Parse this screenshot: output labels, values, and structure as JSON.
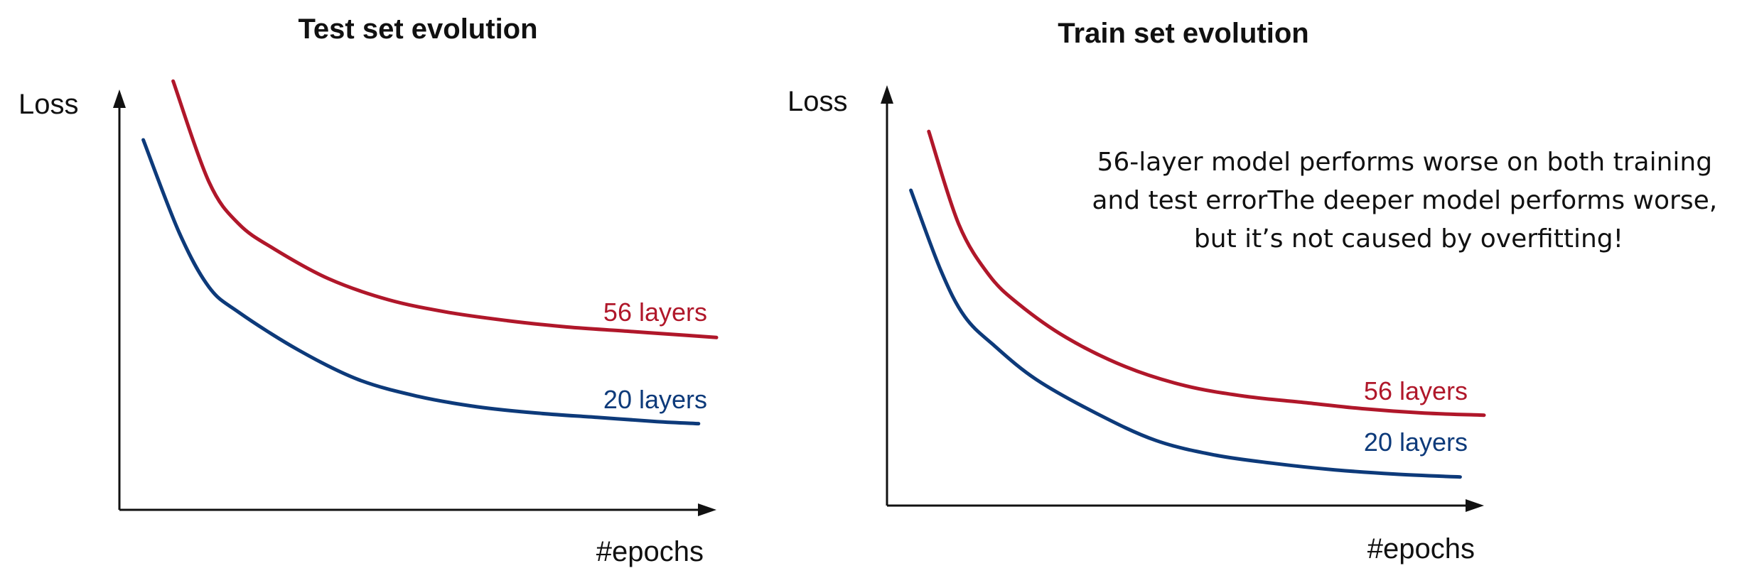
{
  "colors": {
    "red_series": "#b0172a",
    "blue_series": "#0d3a7a",
    "axis": "#111111",
    "background": "#ffffff"
  },
  "chart_data": [
    {
      "type": "line",
      "title": "Test set evolution",
      "xlabel": "#epochs",
      "ylabel": "Loss",
      "grid": false,
      "xlim": [
        0,
        1
      ],
      "ylim": [
        0,
        1
      ],
      "series": [
        {
          "name": "56 layers",
          "color": "#b0172a",
          "x": [
            0.09,
            0.15,
            0.2,
            0.26,
            0.35,
            0.45,
            0.55,
            0.65,
            0.75,
            0.85,
            0.95,
            1.0
          ],
          "y": [
            1.02,
            0.78,
            0.68,
            0.62,
            0.55,
            0.5,
            0.47,
            0.45,
            0.435,
            0.425,
            0.415,
            0.41
          ]
        },
        {
          "name": "20 layers",
          "color": "#0d3a7a",
          "x": [
            0.04,
            0.1,
            0.15,
            0.2,
            0.3,
            0.4,
            0.5,
            0.6,
            0.7,
            0.8,
            0.9,
            0.97
          ],
          "y": [
            0.88,
            0.66,
            0.53,
            0.47,
            0.38,
            0.31,
            0.27,
            0.245,
            0.23,
            0.22,
            0.21,
            0.205
          ]
        }
      ]
    },
    {
      "type": "line",
      "title": "Train set evolution",
      "xlabel": "#epochs",
      "ylabel": "Loss",
      "grid": false,
      "xlim": [
        0,
        1
      ],
      "ylim": [
        0,
        1
      ],
      "annotation": "56-layer model performs worse on both training and test errorThe deeper model performs worse, but it’s not caused by overfitting!",
      "annotation_lines": [
        "56-layer model performs worse on both training",
        "and test errorThe deeper model performs worse,",
        "but it’s not caused by overfitting!"
      ],
      "series": [
        {
          "name": "56 layers",
          "color": "#b0172a",
          "x": [
            0.07,
            0.12,
            0.17,
            0.22,
            0.3,
            0.4,
            0.5,
            0.6,
            0.7,
            0.8,
            0.9,
            1.0
          ],
          "y": [
            0.89,
            0.67,
            0.55,
            0.48,
            0.4,
            0.33,
            0.285,
            0.26,
            0.245,
            0.23,
            0.22,
            0.215
          ]
        },
        {
          "name": "20 layers",
          "color": "#0d3a7a",
          "x": [
            0.04,
            0.09,
            0.13,
            0.18,
            0.25,
            0.35,
            0.45,
            0.55,
            0.65,
            0.75,
            0.85,
            0.96
          ],
          "y": [
            0.75,
            0.56,
            0.45,
            0.38,
            0.3,
            0.22,
            0.155,
            0.12,
            0.1,
            0.085,
            0.075,
            0.068
          ]
        }
      ]
    }
  ]
}
